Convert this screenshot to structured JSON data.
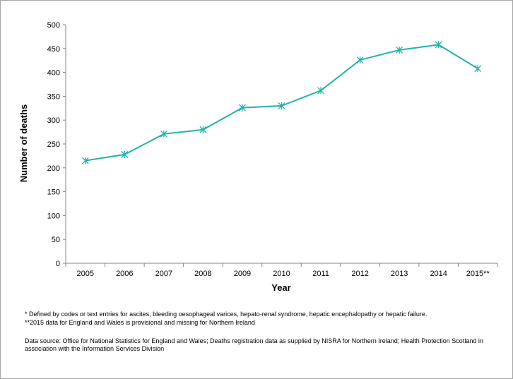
{
  "chart_data": {
    "type": "line",
    "title": "",
    "xlabel": "Year",
    "ylabel": "Number of deaths",
    "categories": [
      "2005",
      "2006",
      "2007",
      "2008",
      "2009",
      "2010",
      "2011",
      "2012",
      "2013",
      "2014",
      "2015**"
    ],
    "series": [
      {
        "values": [
          215,
          228,
          271,
          280,
          326,
          330,
          362,
          426,
          447,
          458,
          408
        ],
        "color": "#20b2aa",
        "marker": "asterisk"
      }
    ],
    "ylim": [
      0,
      500
    ],
    "yticks": [
      0,
      50,
      100,
      150,
      200,
      250,
      300,
      350,
      400,
      450,
      500
    ],
    "grid": false,
    "legend": "none"
  },
  "notes": {
    "definition": "* Defined by codes or text entries for ascites, bleeding oesophageal varices, hepato-renal syndrome, hepatic encephalopathy or hepatic failure.",
    "provisional": "**2015 data for England and Wales is provisional and missing for Northern Ireland",
    "source_line1": "Data source: Office for National Statistics for England and Wales;  Deaths registration data as supplied by NISRA for Northern Ireland; Health Protection Scotland in",
    "source_line2": "association with the Information Services Division"
  }
}
